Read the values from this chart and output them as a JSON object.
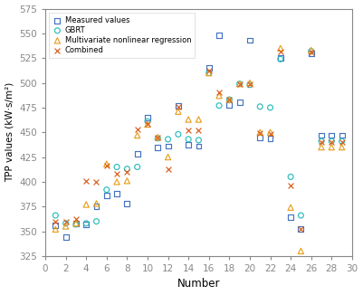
{
  "measured": {
    "x": [
      1,
      2,
      3,
      4,
      5,
      6,
      7,
      8,
      9,
      10,
      11,
      12,
      13,
      14,
      15,
      16,
      17,
      18,
      19,
      20,
      21,
      22,
      23,
      24,
      25,
      26,
      27,
      28,
      29
    ],
    "y": [
      356,
      344,
      358,
      357,
      375,
      386,
      388,
      378,
      428,
      465,
      435,
      436,
      477,
      437,
      436,
      515,
      548,
      478,
      480,
      543,
      445,
      444,
      525,
      364,
      352,
      530,
      447,
      447,
      447
    ]
  },
  "gbrt": {
    "x": [
      1,
      2,
      3,
      4,
      5,
      6,
      7,
      8,
      9,
      10,
      11,
      12,
      13,
      14,
      15,
      16,
      17,
      18,
      19,
      20,
      21,
      22,
      23,
      24,
      25,
      26,
      27,
      28,
      29
    ],
    "y": [
      366,
      358,
      357,
      358,
      360,
      392,
      415,
      413,
      415,
      461,
      444,
      443,
      448,
      443,
      442,
      510,
      477,
      483,
      499,
      498,
      476,
      475,
      524,
      405,
      366,
      532,
      441,
      441,
      441
    ]
  },
  "multivariate": {
    "x": [
      1,
      2,
      3,
      4,
      5,
      6,
      7,
      8,
      9,
      10,
      11,
      12,
      13,
      14,
      15,
      16,
      17,
      18,
      19,
      20,
      21,
      22,
      23,
      24,
      25,
      26,
      27,
      28,
      29
    ],
    "y": [
      352,
      355,
      358,
      377,
      378,
      418,
      400,
      401,
      447,
      458,
      445,
      425,
      471,
      463,
      463,
      510,
      487,
      483,
      499,
      500,
      450,
      450,
      535,
      374,
      330,
      533,
      435,
      435,
      435
    ]
  },
  "combined": {
    "x": [
      1,
      2,
      3,
      4,
      5,
      6,
      7,
      8,
      9,
      10,
      11,
      12,
      13,
      14,
      15,
      16,
      17,
      18,
      19,
      20,
      21,
      22,
      23,
      24,
      25,
      26,
      27,
      28,
      29
    ],
    "y": [
      360,
      360,
      362,
      401,
      400,
      416,
      408,
      410,
      453,
      458,
      445,
      413,
      476,
      452,
      452,
      512,
      490,
      483,
      499,
      499,
      449,
      448,
      532,
      396,
      352,
      531,
      440,
      440,
      440
    ]
  },
  "colors": {
    "measured": "#4472C4",
    "gbrt": "#2ABCBC",
    "multivariate": "#E8A020",
    "combined": "#D95C1A"
  },
  "xlabel": "Number",
  "ylabel": "TPP values (kW·s/m²)",
  "xlim": [
    0,
    30
  ],
  "ylim": [
    325,
    575
  ],
  "yticks": [
    325,
    350,
    375,
    400,
    425,
    450,
    475,
    500,
    525,
    550,
    575
  ],
  "xticks": [
    0,
    2,
    4,
    6,
    8,
    10,
    12,
    14,
    16,
    18,
    20,
    22,
    24,
    26,
    28,
    30
  ],
  "legend_labels": [
    "Measured values",
    "GBRT",
    "Multivariate nonlinear regression",
    "Combined"
  ],
  "figsize": [
    4.01,
    3.26
  ],
  "dpi": 100
}
